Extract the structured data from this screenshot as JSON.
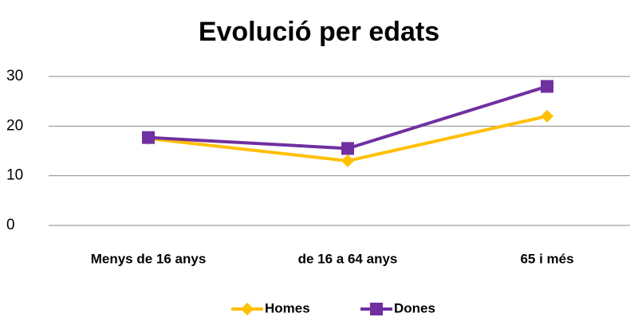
{
  "chart_data": {
    "type": "line",
    "title": "Evolució per edats",
    "categories": [
      "Menys de 16 anys",
      "de 16 a 64 anys",
      "65 i més"
    ],
    "series": [
      {
        "name": "Homes",
        "color": "#ffc000",
        "marker": "diamond",
        "values": [
          17.5,
          13,
          22
        ]
      },
      {
        "name": "Dones",
        "color": "#7030a0",
        "marker": "square",
        "values": [
          17.7,
          15.5,
          28
        ]
      }
    ],
    "ylim": [
      0,
      30
    ],
    "yticks": [
      0,
      10,
      20,
      30
    ],
    "grid": true,
    "legend": "bottom"
  }
}
